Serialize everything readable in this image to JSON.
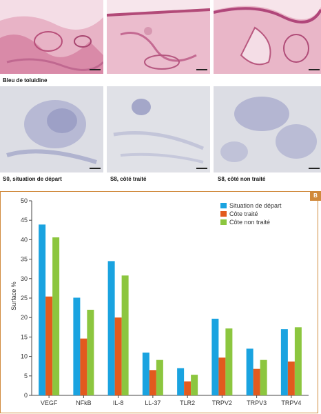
{
  "figure": {
    "stain_label": "Bleu de toluidine",
    "captions": [
      "S0, situation de départ",
      "S8, côté traité",
      "S8, côté non traité"
    ],
    "panel_badge": "B"
  },
  "chart_data": {
    "type": "bar",
    "categories": [
      "VEGF",
      "NFkB",
      "IL-8",
      "LL-37",
      "TLR2",
      "TRPV2",
      "TRPV3",
      "TRPV4"
    ],
    "series": [
      {
        "name": "Situation de départ",
        "color": "#1aa3e0",
        "values": [
          43.9,
          25.1,
          34.5,
          11.0,
          7.0,
          19.7,
          12.0,
          17.0
        ]
      },
      {
        "name": "Côte traité",
        "color": "#e25a1e",
        "values": [
          25.4,
          14.6,
          20.0,
          6.5,
          3.6,
          9.7,
          6.8,
          8.7
        ]
      },
      {
        "name": "Côte non traité",
        "color": "#8cc63f",
        "values": [
          40.6,
          22.0,
          30.8,
          9.1,
          5.3,
          17.2,
          9.1,
          17.5
        ]
      }
    ],
    "ylabel": "Surface %",
    "ylim": [
      0,
      50
    ],
    "yticks": [
      0,
      5,
      10,
      15,
      20,
      25,
      30,
      35,
      40,
      45,
      50
    ],
    "legend_position": "top-right",
    "grid": false
  }
}
